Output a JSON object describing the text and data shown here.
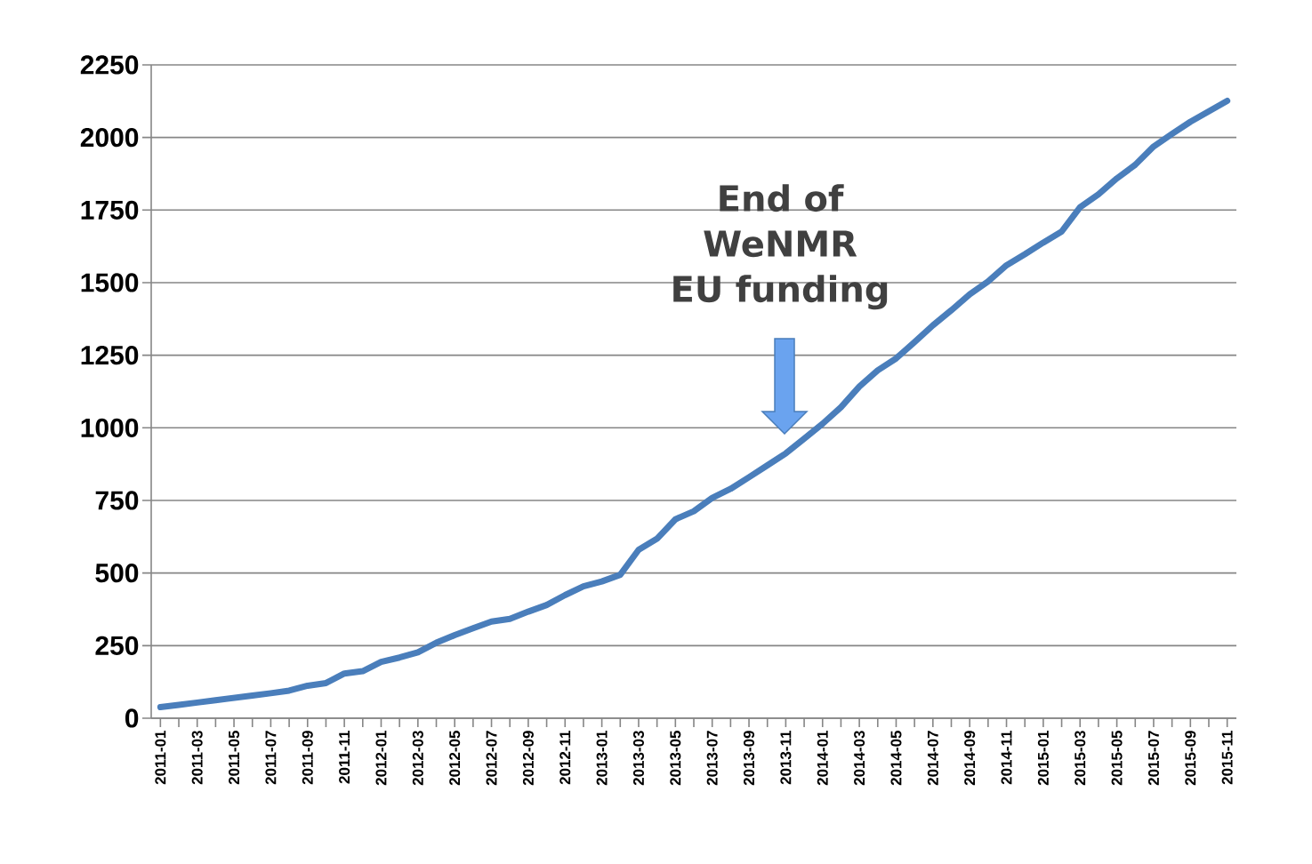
{
  "chart_data": {
    "type": "line",
    "categories": [
      "2011-01",
      null,
      "2011-03",
      null,
      "2011-05",
      null,
      "2011-07",
      null,
      "2011-09",
      null,
      "2011-11",
      null,
      "2012-01",
      null,
      "2012-03",
      null,
      "2012-05",
      null,
      "2012-07",
      null,
      "2012-09",
      null,
      "2012-11",
      null,
      "2013-01",
      null,
      "2013-03",
      null,
      "2013-05",
      null,
      "2013-07",
      null,
      "2013-09",
      null,
      "2013-11",
      null,
      "2014-01",
      null,
      "2014-03",
      null,
      "2014-05",
      null,
      "2014-07",
      null,
      "2014-09",
      null,
      "2014-11",
      null,
      "2015-01",
      null,
      "2015-03",
      null,
      "2015-05",
      null,
      "2015-07",
      null,
      "2015-09",
      null,
      "2015-11"
    ],
    "series": [
      {
        "color": "#4a7ebb",
        "values": [
          38,
          46,
          54,
          62,
          70,
          78,
          86,
          95,
          112,
          121,
          154,
          162,
          194,
          209,
          227,
          260,
          286,
          310,
          333,
          342,
          367,
          390,
          424,
          454,
          471,
          494,
          580,
          618,
          685,
          713,
          759,
          790,
          830,
          871,
          912,
          963,
          1014,
          1071,
          1142,
          1198,
          1239,
          1295,
          1353,
          1405,
          1460,
          1504,
          1560,
          1598,
          1638,
          1676,
          1760,
          1804,
          1859,
          1906,
          1969,
          2012,
          2054,
          2090,
          2126
        ]
      }
    ],
    "ylim": [
      0,
      2250
    ],
    "yticks": [
      0,
      250,
      500,
      750,
      1000,
      1250,
      1500,
      1750,
      2000,
      2250
    ],
    "grid": "y",
    "marker": "none",
    "line_style": "solid",
    "annotations": [
      "End of WeNMR EU funding"
    ]
  }
}
